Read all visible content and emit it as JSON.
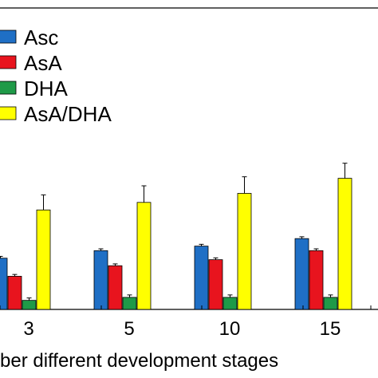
{
  "chart_data": {
    "type": "bar",
    "xlabel": "ber different development stages",
    "categories": [
      "3",
      "5",
      "10",
      "15"
    ],
    "series": [
      {
        "name": "Asc",
        "color": "#1f6fc5",
        "values": [
          1.7,
          1.95,
          2.1,
          2.35
        ],
        "errors": [
          0.06,
          0.06,
          0.06,
          0.06
        ]
      },
      {
        "name": "AsA",
        "color": "#e8141e",
        "values": [
          1.1,
          1.45,
          1.65,
          1.95
        ],
        "errors": [
          0.06,
          0.06,
          0.06,
          0.06
        ]
      },
      {
        "name": "DHA",
        "color": "#1f9a48",
        "values": [
          0.3,
          0.4,
          0.4,
          0.4
        ],
        "errors": [
          0.08,
          0.08,
          0.08,
          0.08
        ]
      },
      {
        "name": "AsA/DHA",
        "color": "#ffff00",
        "values": [
          3.3,
          3.55,
          3.85,
          4.35
        ],
        "errors": [
          0.5,
          0.55,
          0.55,
          0.5
        ]
      }
    ],
    "ylim": [
      0,
      10
    ],
    "legend_position": "top-left",
    "grid": false
  }
}
